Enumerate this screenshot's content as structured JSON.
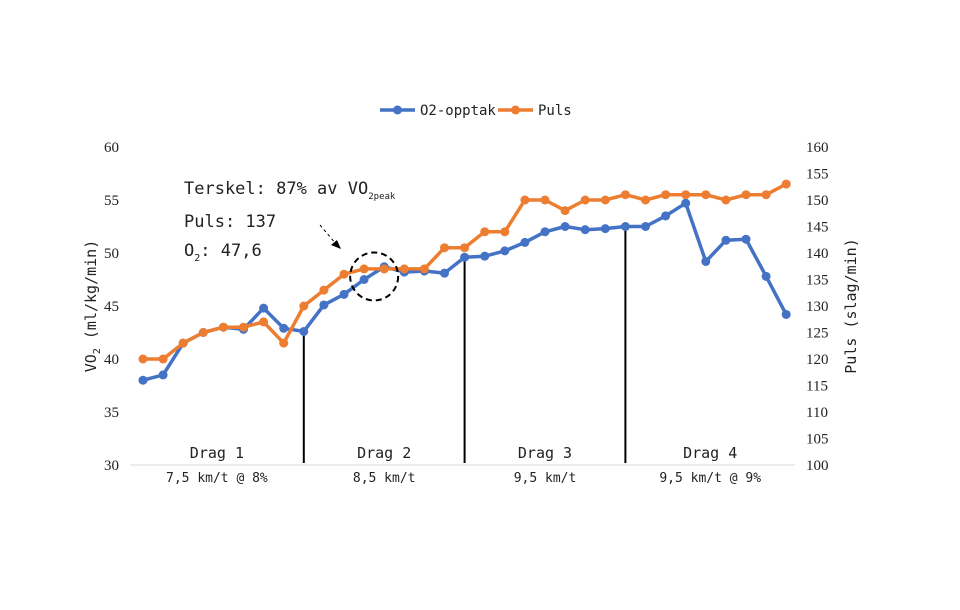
{
  "chart_data": {
    "type": "line",
    "title": "",
    "legend_position": "top",
    "grid": false,
    "ylabel_left": {
      "main": "VO",
      "sub": "2",
      "rest": " (ml/kg/min)"
    },
    "ylabel_right": "Puls (slag/min)",
    "y_left": {
      "min": 30,
      "max": 60,
      "step": 5
    },
    "y_right": {
      "min": 100,
      "max": 160,
      "step": 5
    },
    "series": [
      {
        "name": "O2-opptak",
        "axis": "left",
        "color": "#4472c4",
        "values": [
          38.0,
          38.5,
          41.5,
          42.5,
          43.0,
          42.8,
          44.8,
          42.9,
          42.6,
          45.1,
          46.1,
          47.5,
          48.7,
          48.2,
          48.3,
          48.1,
          49.6,
          49.7,
          50.2,
          51.0,
          52.0,
          52.5,
          52.2,
          52.3,
          52.5,
          52.5,
          53.5,
          54.7,
          49.2,
          51.2,
          51.3,
          47.8,
          44.2
        ]
      },
      {
        "name": "Puls",
        "axis": "right",
        "color": "#ed7d31",
        "values": [
          120,
          120,
          123,
          125,
          126,
          126,
          127,
          123,
          130,
          133,
          136,
          137,
          137,
          137,
          137,
          141,
          141,
          144,
          144,
          150,
          150,
          148,
          150,
          150,
          151,
          150,
          151,
          151,
          151,
          150,
          151,
          151,
          153
        ]
      }
    ],
    "phases": [
      {
        "name": "Drag 1",
        "speed": "7,5 km/t @ 8%",
        "start": 0,
        "end": 8
      },
      {
        "name": "Drag 2",
        "speed": "8,5 km/t",
        "start": 8,
        "end": 16
      },
      {
        "name": "Drag 3",
        "speed": "9,5 km/t",
        "start": 16,
        "end": 24
      },
      {
        "name": "Drag 4",
        "speed": "9,5 km/t @ 9%",
        "start": 24,
        "end": 32
      }
    ],
    "annotation": {
      "threshold_main": "Terskel: 87% av VO",
      "threshold_sub": "2peak",
      "pulse": "Puls: 137",
      "o2_main": "O",
      "o2_sub": "2",
      "o2_rest": ": 47,6",
      "circle_index": 11.5
    }
  }
}
